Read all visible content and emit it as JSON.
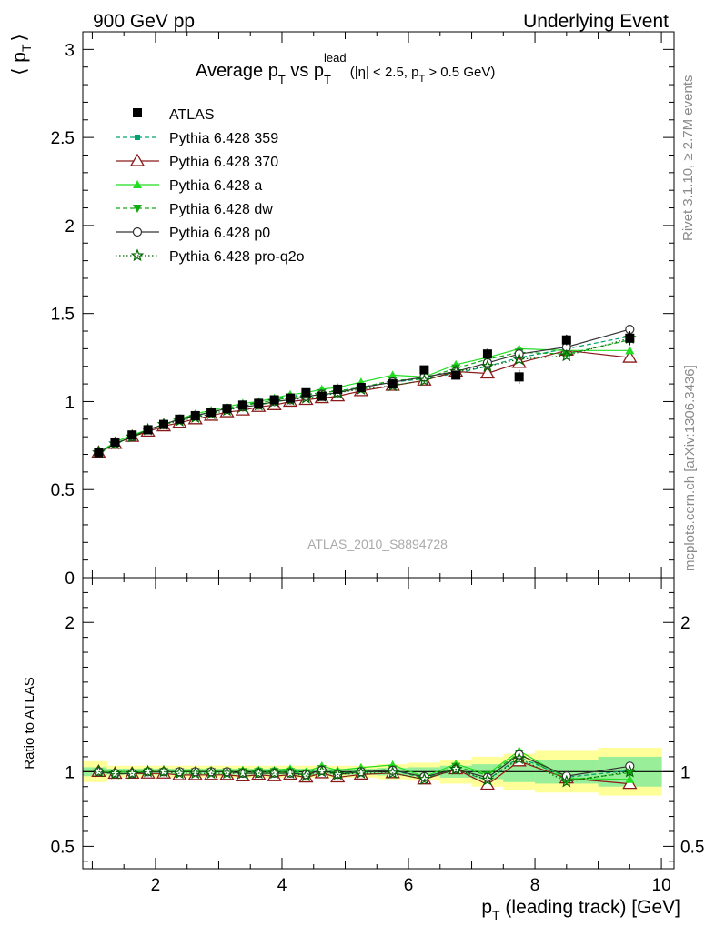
{
  "header": {
    "left": "900 GeV pp",
    "right": "Underlying Event"
  },
  "side_labels": {
    "rivet": "Rivet 3.1.10, ≥ 2.7M events",
    "mcplots": "mcplots.cern.ch [arXiv:1306.3436]"
  },
  "chart_data": [
    {
      "type": "line",
      "title_parts": {
        "t1": "Average p",
        "t1_sub": "T",
        "t2": " vs p",
        "t2_sub": "T",
        "t2_sup": "lead",
        "t3": " (|η| < 2.5, p",
        "t3_sub": "T",
        "t4": " > 0.5 GeV)"
      },
      "ylabel_parts": {
        "open": "⟨ p",
        "sub": "T",
        "close": "⟩"
      },
      "watermark": "ATLAS_2010_S8894728",
      "ylim": [
        0,
        3.1
      ],
      "xlim": [
        0.85,
        10.2
      ],
      "y_ticks": [
        0,
        0.5,
        1,
        1.5,
        2,
        2.5,
        3
      ],
      "y_tick_labels": [
        "0",
        "0.5",
        "1",
        "1.5",
        "2",
        "2.5",
        "3"
      ],
      "x": [
        1.1,
        1.36,
        1.63,
        1.88,
        2.13,
        2.38,
        2.63,
        2.88,
        3.13,
        3.38,
        3.63,
        3.88,
        4.13,
        4.38,
        4.63,
        4.88,
        5.25,
        5.75,
        6.25,
        6.75,
        7.25,
        7.75,
        8.5,
        9.5
      ],
      "data_points": {
        "name": "ATLAS",
        "color": "#000000",
        "y": [
          0.71,
          0.77,
          0.81,
          0.84,
          0.87,
          0.9,
          0.92,
          0.94,
          0.96,
          0.98,
          0.99,
          1.01,
          1.02,
          1.05,
          1.03,
          1.07,
          1.08,
          1.1,
          1.18,
          1.15,
          1.27,
          1.14,
          1.35,
          1.36
        ],
        "yerr": [
          0.01,
          0.01,
          0.01,
          0.01,
          0.01,
          0.01,
          0.01,
          0.01,
          0.01,
          0.01,
          0.01,
          0.01,
          0.01,
          0.01,
          0.01,
          0.01,
          0.01,
          0.01,
          0.02,
          0.02,
          0.03,
          0.04,
          0.03,
          0.04
        ]
      },
      "series": [
        {
          "name": "Pythia 6.428 359",
          "color": "#00a070",
          "dash": "5,3",
          "marker": "square-small",
          "y": [
            0.71,
            0.76,
            0.8,
            0.84,
            0.87,
            0.9,
            0.92,
            0.94,
            0.96,
            0.98,
            1.0,
            1.02,
            1.03,
            1.04,
            1.05,
            1.06,
            1.08,
            1.11,
            1.13,
            1.16,
            1.2,
            1.25,
            1.3,
            1.37
          ]
        },
        {
          "name": "Pythia 6.428 370",
          "color": "#8b1a1a",
          "dash": "",
          "marker": "triangle-open",
          "y": [
            0.71,
            0.76,
            0.8,
            0.83,
            0.86,
            0.88,
            0.9,
            0.92,
            0.94,
            0.95,
            0.97,
            0.98,
            1.0,
            1.01,
            1.02,
            1.03,
            1.06,
            1.09,
            1.12,
            1.17,
            1.16,
            1.22,
            1.29,
            1.25
          ]
        },
        {
          "name": "Pythia 6.428 a",
          "color": "#22dd22",
          "dash": "",
          "marker": "triangle",
          "y": [
            0.71,
            0.77,
            0.81,
            0.84,
            0.87,
            0.9,
            0.93,
            0.95,
            0.97,
            0.99,
            1.0,
            1.02,
            1.04,
            1.05,
            1.07,
            1.08,
            1.11,
            1.15,
            1.14,
            1.21,
            1.25,
            1.3,
            1.29,
            1.29
          ]
        },
        {
          "name": "Pythia 6.428 dw",
          "color": "#11aa11",
          "dash": "5,3",
          "marker": "triangle-down",
          "y": [
            0.71,
            0.76,
            0.8,
            0.84,
            0.87,
            0.9,
            0.92,
            0.94,
            0.96,
            0.98,
            0.99,
            1.01,
            1.02,
            1.04,
            1.05,
            1.06,
            1.08,
            1.12,
            1.13,
            1.19,
            1.24,
            1.28,
            1.27,
            1.35
          ]
        },
        {
          "name": "Pythia 6.428 p0",
          "color": "#333333",
          "dash": "",
          "marker": "circle-open",
          "y": [
            0.71,
            0.76,
            0.8,
            0.84,
            0.87,
            0.9,
            0.92,
            0.94,
            0.96,
            0.97,
            0.98,
            1.0,
            1.01,
            1.03,
            1.04,
            1.05,
            1.08,
            1.11,
            1.14,
            1.17,
            1.22,
            1.27,
            1.31,
            1.41
          ]
        },
        {
          "name": "Pythia 6.428 pro-q2o",
          "color": "#006600",
          "dash": "1.5,2.5",
          "marker": "star",
          "y": [
            0.71,
            0.76,
            0.8,
            0.84,
            0.87,
            0.89,
            0.91,
            0.93,
            0.95,
            0.97,
            0.98,
            1.0,
            1.01,
            1.02,
            1.03,
            1.05,
            1.07,
            1.09,
            1.12,
            1.17,
            1.2,
            1.24,
            1.26,
            1.36
          ]
        }
      ]
    },
    {
      "type": "line",
      "ylabel": "Ratio to ATLAS",
      "xlabel_parts": {
        "p": "p",
        "sub": "T",
        "rest": " (leading track) [GeV]"
      },
      "ylim": [
        0.35,
        2.3
      ],
      "y_ticks": [
        0.5,
        1,
        2
      ],
      "y_tick_labels": [
        "0.5",
        "1",
        "2"
      ],
      "x_ticks": [
        2,
        4,
        6,
        8,
        10
      ],
      "x_tick_labels": [
        "2",
        "4",
        "6",
        "8",
        "10"
      ],
      "band_edges": [
        0.85,
        1.23,
        1.49,
        1.76,
        2.0,
        2.25,
        2.5,
        2.76,
        3.0,
        3.25,
        3.5,
        3.76,
        4.0,
        4.25,
        4.5,
        4.76,
        5.0,
        5.5,
        6.0,
        6.5,
        7.0,
        7.5,
        8.0,
        9.0,
        10.0
      ],
      "band_stat": [
        0.03,
        0.02,
        0.02,
        0.02,
        0.02,
        0.02,
        0.02,
        0.02,
        0.02,
        0.02,
        0.02,
        0.02,
        0.02,
        0.02,
        0.02,
        0.02,
        0.02,
        0.025,
        0.03,
        0.04,
        0.05,
        0.07,
        0.08,
        0.1
      ],
      "band_syst": [
        0.07,
        0.04,
        0.04,
        0.04,
        0.04,
        0.04,
        0.04,
        0.04,
        0.04,
        0.04,
        0.04,
        0.04,
        0.04,
        0.04,
        0.04,
        0.04,
        0.04,
        0.05,
        0.06,
        0.08,
        0.1,
        0.12,
        0.14,
        0.16
      ],
      "band_colors": {
        "syst": "#ffff99",
        "stat": "#99ee99"
      }
    }
  ]
}
